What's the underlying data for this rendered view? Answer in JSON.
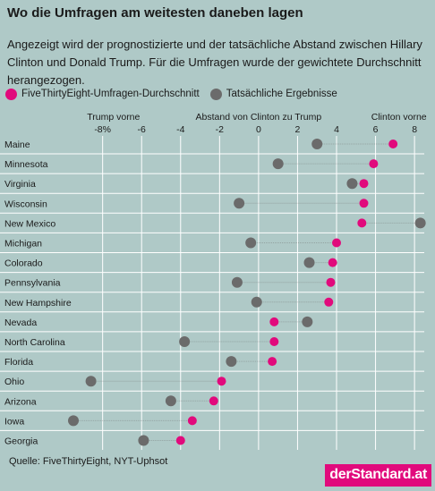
{
  "title": "Wo die Umfragen am weitesten daneben lagen",
  "subtitle": "Angezeigt wird der prognostizierte und der tatsächliche Abstand zwischen Hillary Clinton und Donald Trump. Für die Umfragen wurde der gewichtete Durchschnitt herangezogen.",
  "source": "Quelle: FiveThirtyEight, NYT-Uphsot",
  "logo": "derStandard.at",
  "colors": {
    "poll": "#e10a7c",
    "result": "#6b6b6b",
    "background": "#afc9c7",
    "grid": "#ffffff"
  },
  "chart_data": {
    "type": "scatter",
    "xlabel": "Abstand von Clinton zu Trump",
    "xlabel_left": "Trump vorne",
    "xlabel_right": "Clinton vorne",
    "xlim": [
      -9.5,
      8.5
    ],
    "ticks": [
      {
        "value": -8,
        "label": "-8%"
      },
      {
        "value": -6,
        "label": "-6"
      },
      {
        "value": -4,
        "label": "-4"
      },
      {
        "value": -2,
        "label": "-2"
      },
      {
        "value": 0,
        "label": "0"
      },
      {
        "value": 2,
        "label": "2"
      },
      {
        "value": 4,
        "label": "4"
      },
      {
        "value": 6,
        "label": "6"
      },
      {
        "value": 8,
        "label": "8"
      }
    ],
    "grid": true,
    "legend_position": "top-left",
    "series": [
      {
        "name": "FiveThirtyEight-Umfragen-Durchschnitt",
        "color": "#e10a7c"
      },
      {
        "name": "Tatsächliche Ergebnisse",
        "color": "#6b6b6b"
      }
    ],
    "states": [
      {
        "name": "Maine",
        "poll": 6.9,
        "result": 3.0
      },
      {
        "name": "Minnesota",
        "poll": 5.9,
        "result": 1.0
      },
      {
        "name": "Virginia",
        "poll": 5.4,
        "result": 4.8
      },
      {
        "name": "Wisconsin",
        "poll": 5.4,
        "result": -1.0
      },
      {
        "name": "New Mexico",
        "poll": 5.3,
        "result": 8.3
      },
      {
        "name": "Michigan",
        "poll": 4.0,
        "result": -0.4
      },
      {
        "name": "Colorado",
        "poll": 3.8,
        "result": 2.6
      },
      {
        "name": "Pennsylvania",
        "poll": 3.7,
        "result": -1.1
      },
      {
        "name": "New Hampshire",
        "poll": 3.6,
        "result": -0.1
      },
      {
        "name": "Nevada",
        "poll": 0.8,
        "result": 2.5
      },
      {
        "name": "North Carolina",
        "poll": 0.8,
        "result": -3.8
      },
      {
        "name": "Florida",
        "poll": 0.7,
        "result": -1.4
      },
      {
        "name": "Ohio",
        "poll": -1.9,
        "result": -8.6
      },
      {
        "name": "Arizona",
        "poll": -2.3,
        "result": -4.5
      },
      {
        "name": "Iowa",
        "poll": -3.4,
        "result": -9.5
      },
      {
        "name": "Georgia",
        "poll": -4.0,
        "result": -5.9
      }
    ]
  }
}
